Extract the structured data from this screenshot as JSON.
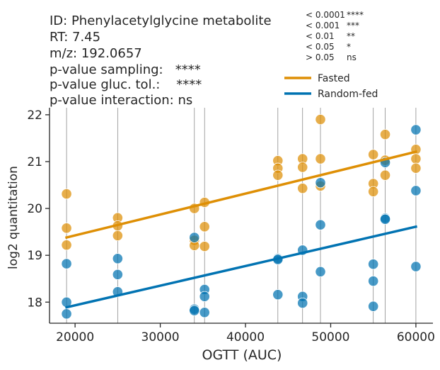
{
  "chart_data": {
    "type": "scatter",
    "xlabel": "OGTT (AUC)",
    "ylabel": "log2 quantitation",
    "xlim": [
      17000,
      62000
    ],
    "ylim": [
      17.55,
      22.15
    ],
    "xticks": [
      20000,
      30000,
      40000,
      50000,
      60000
    ],
    "xtick_labels": [
      "20000",
      "30000",
      "40000",
      "50000",
      "60000"
    ],
    "yticks": [
      18,
      19,
      20,
      21,
      22
    ],
    "ytick_labels": [
      "18",
      "19",
      "20",
      "21",
      "22"
    ],
    "vlines": [
      19000,
      25000,
      34000,
      35200,
      43800,
      46700,
      48800,
      55000,
      56400,
      60000
    ],
    "info": {
      "id": "ID: Phenylacetylglycine metabolite",
      "rt": "RT: 7.45",
      "mz": "m/z: 192.0657",
      "p_sampling": "p-value sampling:   ****",
      "p_gluc": "p-value gluc. tol.:    ****",
      "p_interaction": "p-value interaction: ns"
    },
    "significance_key": [
      {
        "threshold": "< 0.0001",
        "symbol": "****"
      },
      {
        "threshold": "< 0.001",
        "symbol": "***"
      },
      {
        "threshold": "< 0.01",
        "symbol": "**"
      },
      {
        "threshold": "< 0.05",
        "symbol": "*"
      },
      {
        "threshold": "> 0.05",
        "symbol": "ns"
      }
    ],
    "series": [
      {
        "name": "Fasted",
        "color": "#DE8F05",
        "points": [
          [
            19000,
            20.31
          ],
          [
            19000,
            19.58
          ],
          [
            19000,
            19.22
          ],
          [
            25000,
            19.8
          ],
          [
            25000,
            19.63
          ],
          [
            25000,
            19.42
          ],
          [
            34000,
            20.0
          ],
          [
            34000,
            19.32
          ],
          [
            34000,
            19.21
          ],
          [
            35200,
            20.13
          ],
          [
            35200,
            19.61
          ],
          [
            35200,
            19.19
          ],
          [
            43800,
            21.02
          ],
          [
            43800,
            20.86
          ],
          [
            43800,
            20.71
          ],
          [
            46700,
            21.06
          ],
          [
            46700,
            20.88
          ],
          [
            46700,
            20.43
          ],
          [
            48800,
            21.9
          ],
          [
            48800,
            21.06
          ],
          [
            48800,
            20.48
          ],
          [
            55000,
            21.15
          ],
          [
            55000,
            20.53
          ],
          [
            55000,
            20.36
          ],
          [
            56400,
            21.58
          ],
          [
            56400,
            21.03
          ],
          [
            56400,
            20.71
          ],
          [
            60000,
            21.26
          ],
          [
            60000,
            21.06
          ],
          [
            60000,
            20.86
          ]
        ],
        "fit": [
          [
            19000,
            19.38
          ],
          [
            60000,
            21.21
          ]
        ]
      },
      {
        "name": "Random-fed",
        "color": "#0173B2",
        "points": [
          [
            19000,
            18.82
          ],
          [
            19000,
            18.0
          ],
          [
            19000,
            17.75
          ],
          [
            25000,
            18.93
          ],
          [
            25000,
            18.59
          ],
          [
            25000,
            18.22
          ],
          [
            34000,
            19.38
          ],
          [
            34000,
            17.85
          ],
          [
            34000,
            17.82
          ],
          [
            35200,
            18.27
          ],
          [
            35200,
            18.12
          ],
          [
            35200,
            17.78
          ],
          [
            43800,
            18.93
          ],
          [
            43800,
            18.91
          ],
          [
            43800,
            18.16
          ],
          [
            46700,
            19.11
          ],
          [
            46700,
            18.12
          ],
          [
            46700,
            17.98
          ],
          [
            48800,
            20.55
          ],
          [
            48800,
            19.65
          ],
          [
            48800,
            18.65
          ],
          [
            55000,
            18.81
          ],
          [
            55000,
            18.45
          ],
          [
            55000,
            17.91
          ],
          [
            56400,
            20.98
          ],
          [
            56400,
            19.79
          ],
          [
            56400,
            19.77
          ],
          [
            60000,
            21.68
          ],
          [
            60000,
            20.38
          ],
          [
            60000,
            18.76
          ]
        ],
        "fit": [
          [
            19000,
            17.89
          ],
          [
            60000,
            19.61
          ]
        ]
      }
    ]
  }
}
